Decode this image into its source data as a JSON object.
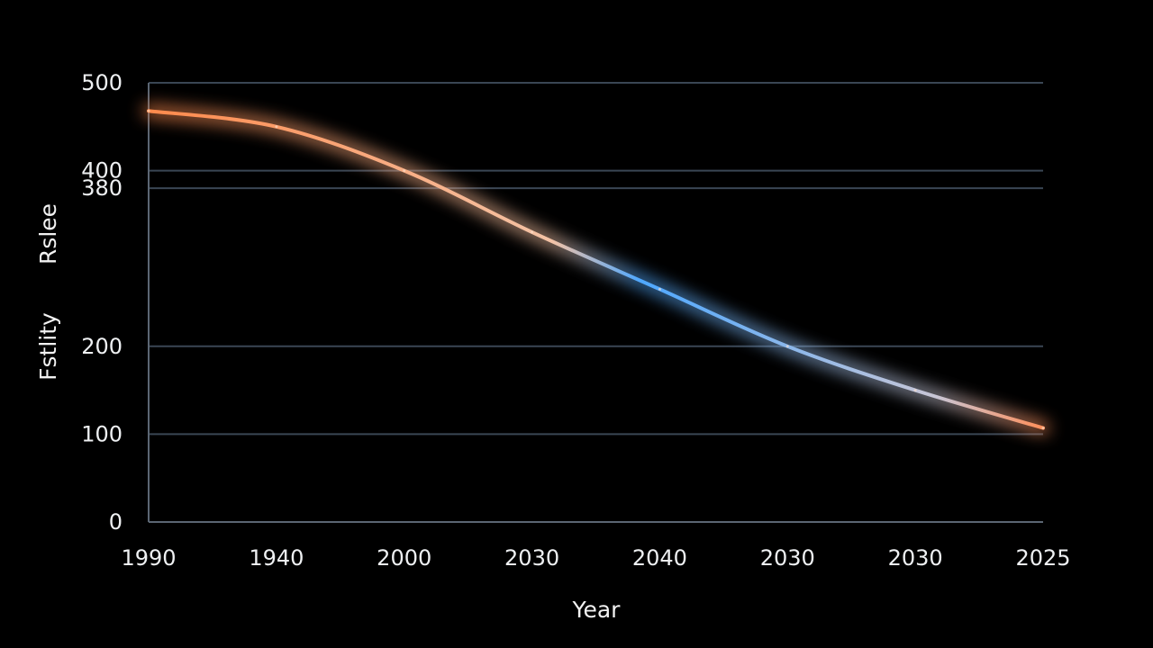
{
  "chart_data": {
    "type": "line",
    "xlabel": "Year",
    "ylabel": [
      "Fstlity",
      "Rslee"
    ],
    "x_tick_labels": [
      "1990",
      "1940",
      "2000",
      "2030",
      "2040",
      "2030",
      "2030",
      "2025"
    ],
    "y_ticks": [
      0,
      100,
      200,
      380,
      400,
      500
    ],
    "y_tick_labels": [
      "0",
      "100",
      "200",
      "380",
      "400",
      "500"
    ],
    "ylim": [
      0,
      500
    ],
    "grid": true,
    "series": [
      {
        "x_index": [
          0,
          1,
          2,
          3,
          4,
          5,
          6,
          7
        ],
        "values": [
          468,
          450,
          400,
          330,
          265,
          200,
          150,
          107
        ]
      }
    ],
    "colors": {
      "background": "#000000",
      "grid": "#3a4654",
      "axis": "#5b6673",
      "line_start": "#ff8a4c",
      "line_mid": "#4ea8ff",
      "line_end": "#ff8f5a",
      "text": "#eef0f2"
    }
  }
}
